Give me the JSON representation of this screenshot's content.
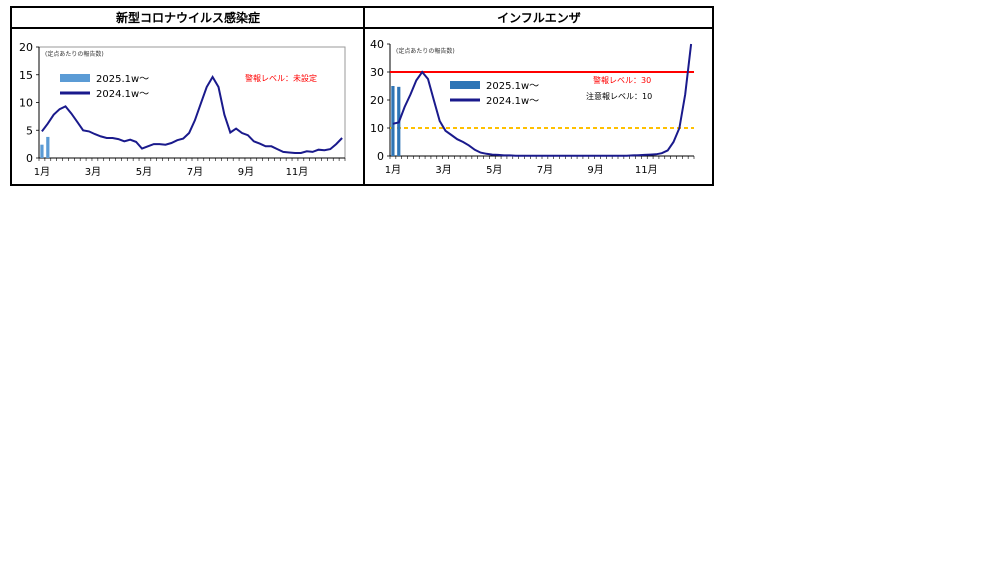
{
  "chart_data": [
    {
      "type": "bar+line",
      "title": "新型コロナウイルス感染症",
      "unit_note": "(定点あたりの報告数)",
      "ylim": [
        0,
        20
      ],
      "yticks": [
        "0",
        "5",
        "10",
        "15",
        "20"
      ],
      "xticks": [
        "1月",
        "3月",
        "5月",
        "7月",
        "9月",
        "11月"
      ],
      "alert_text": "警報レベル：未設定",
      "series": [
        {
          "name": "2025.1w〜",
          "kind": "bar",
          "color": "#5b9bd5",
          "x": [
            1,
            2
          ],
          "values": [
            2.4,
            3.8
          ]
        },
        {
          "name": "2024.1w〜",
          "kind": "line",
          "color": "#1a1a8c",
          "x": [
            1,
            2,
            3,
            4,
            5,
            6,
            7,
            8,
            9,
            10,
            11,
            12,
            13,
            14,
            15,
            16,
            17,
            18,
            19,
            20,
            21,
            22,
            23,
            24,
            25,
            26,
            27,
            28,
            29,
            30,
            31,
            32,
            33,
            34,
            35,
            36,
            37,
            38,
            39,
            40,
            41,
            42,
            43,
            44,
            45,
            46,
            47,
            48,
            49,
            50,
            51,
            52
          ],
          "values": [
            4.8,
            6.2,
            7.8,
            8.8,
            9.3,
            8.0,
            6.5,
            5.0,
            4.8,
            4.3,
            3.9,
            3.6,
            3.6,
            3.4,
            3.0,
            3.3,
            2.9,
            1.7,
            2.1,
            2.5,
            2.5,
            2.4,
            2.7,
            3.2,
            3.5,
            4.5,
            6.8,
            9.8,
            12.8,
            14.6,
            12.8,
            7.8,
            4.6,
            5.3,
            4.5,
            4.1,
            3.0,
            2.6,
            2.1,
            2.1,
            1.6,
            1.1,
            1.0,
            0.9,
            0.9,
            1.2,
            1.1,
            1.5,
            1.4,
            1.6,
            2.5,
            3.6
          ]
        }
      ]
    },
    {
      "type": "bar+line",
      "title": "インフルエンザ",
      "unit_note": "(定点あたりの報告数)",
      "ylim": [
        0,
        40
      ],
      "yticks": [
        "0",
        "10",
        "20",
        "30",
        "40"
      ],
      "xticks": [
        "1月",
        "3月",
        "5月",
        "7月",
        "9月",
        "11月"
      ],
      "thresholds": [
        {
          "label": "警報レベル：30",
          "value": 30,
          "color": "#ff0000"
        },
        {
          "label": "注意報レベル：10",
          "value": 10,
          "color": "#ffc000"
        }
      ],
      "series": [
        {
          "name": "2025.1w〜",
          "kind": "bar",
          "color": "#2e75b6",
          "x": [
            1,
            2
          ],
          "values": [
            25.0,
            24.7
          ]
        },
        {
          "name": "2024.1w〜",
          "kind": "line",
          "color": "#1a1a8c",
          "x": [
            1,
            2,
            3,
            4,
            5,
            6,
            7,
            8,
            9,
            10,
            11,
            12,
            13,
            14,
            15,
            16,
            17,
            18,
            19,
            20,
            21,
            22,
            23,
            24,
            25,
            26,
            27,
            28,
            29,
            30,
            31,
            32,
            33,
            34,
            35,
            36,
            37,
            38,
            39,
            40,
            41,
            42,
            43,
            44,
            45,
            46,
            47,
            48,
            49,
            50,
            51,
            52
          ],
          "values": [
            11.5,
            12.0,
            17.5,
            22.0,
            27.0,
            30.0,
            27.5,
            20.0,
            12.5,
            9.0,
            7.5,
            6.0,
            5.0,
            3.8,
            2.2,
            1.2,
            0.8,
            0.5,
            0.4,
            0.2,
            0.2,
            0.1,
            0.1,
            0.1,
            0.1,
            0.1,
            0.1,
            0.1,
            0.1,
            0.1,
            0.1,
            0.1,
            0.1,
            0.1,
            0.1,
            0.1,
            0.1,
            0.1,
            0.1,
            0.1,
            0.1,
            0.2,
            0.3,
            0.4,
            0.5,
            0.6,
            1.0,
            2.0,
            5.0,
            10.0,
            22.0,
            40.0
          ]
        }
      ]
    }
  ]
}
